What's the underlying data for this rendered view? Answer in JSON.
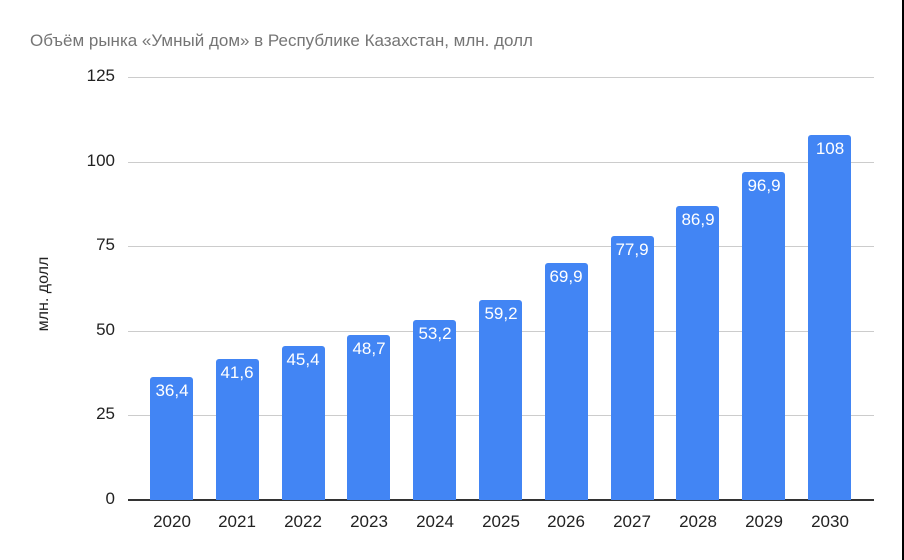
{
  "chart_data": {
    "type": "bar",
    "title": "Объём рынка «Умный дом» в Республике Казахстан, млн. долл",
    "xlabel": "",
    "ylabel": "млн. долл",
    "ylim": [
      0,
      125
    ],
    "yticks": [
      "0",
      "25",
      "50",
      "75",
      "100",
      "125"
    ],
    "grid": true,
    "legend": "none",
    "categories": [
      "2020",
      "2021",
      "2022",
      "2023",
      "2024",
      "2025",
      "2026",
      "2027",
      "2028",
      "2029",
      "2030"
    ],
    "values": [
      36.4,
      41.6,
      45.4,
      48.7,
      53.2,
      59.2,
      69.9,
      77.9,
      86.9,
      96.9,
      108
    ],
    "data_labels": [
      "36,4",
      "41,6",
      "45,4",
      "48,7",
      "53,2",
      "59,2",
      "69,9",
      "77,9",
      "86,9",
      "96,9",
      "108"
    ],
    "bar_color": "#4285f4"
  }
}
